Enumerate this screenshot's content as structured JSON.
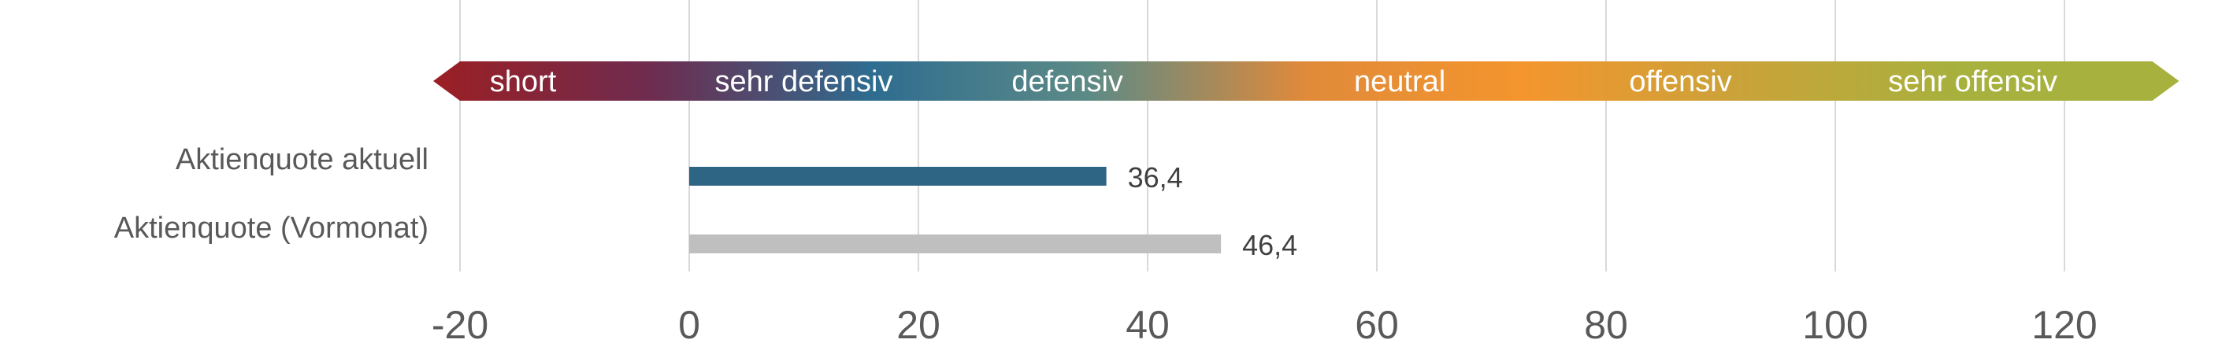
{
  "chart_data": {
    "type": "bar",
    "orientation": "horizontal",
    "title": "",
    "xlabel": "",
    "ylabel": "",
    "xlim": [
      -20,
      130
    ],
    "x_ticks": [
      -20,
      0,
      20,
      40,
      60,
      80,
      100,
      120
    ],
    "tick_labels": [
      "-20",
      "0",
      "20",
      "40",
      "60",
      "80",
      "100",
      "120"
    ],
    "grid": "vertical",
    "categories": [
      "Aktienquote aktuell",
      "Aktienquote (Vormonat)"
    ],
    "values": [
      36.4,
      46.4
    ],
    "value_labels": [
      "36,4",
      "46,4"
    ],
    "bar_colors": [
      "#2E6484",
      "#BFBFBF"
    ],
    "scale_band": {
      "range": [
        -20,
        130
      ],
      "labels": [
        {
          "text": "short",
          "at": -14.5
        },
        {
          "text": "sehr defensiv",
          "at": 10
        },
        {
          "text": "defensiv",
          "at": 33
        },
        {
          "text": "neutral",
          "at": 62
        },
        {
          "text": "offensiv",
          "at": 86.5
        },
        {
          "text": "sehr offensiv",
          "at": 112
        }
      ],
      "gradient_colors": [
        "#9B1F24",
        "#6E2C4F",
        "#2E6C90",
        "#5C8A86",
        "#E08A3A",
        "#F4952D",
        "#C9A33A",
        "#A7B13D",
        "#A7B13D"
      ]
    }
  }
}
